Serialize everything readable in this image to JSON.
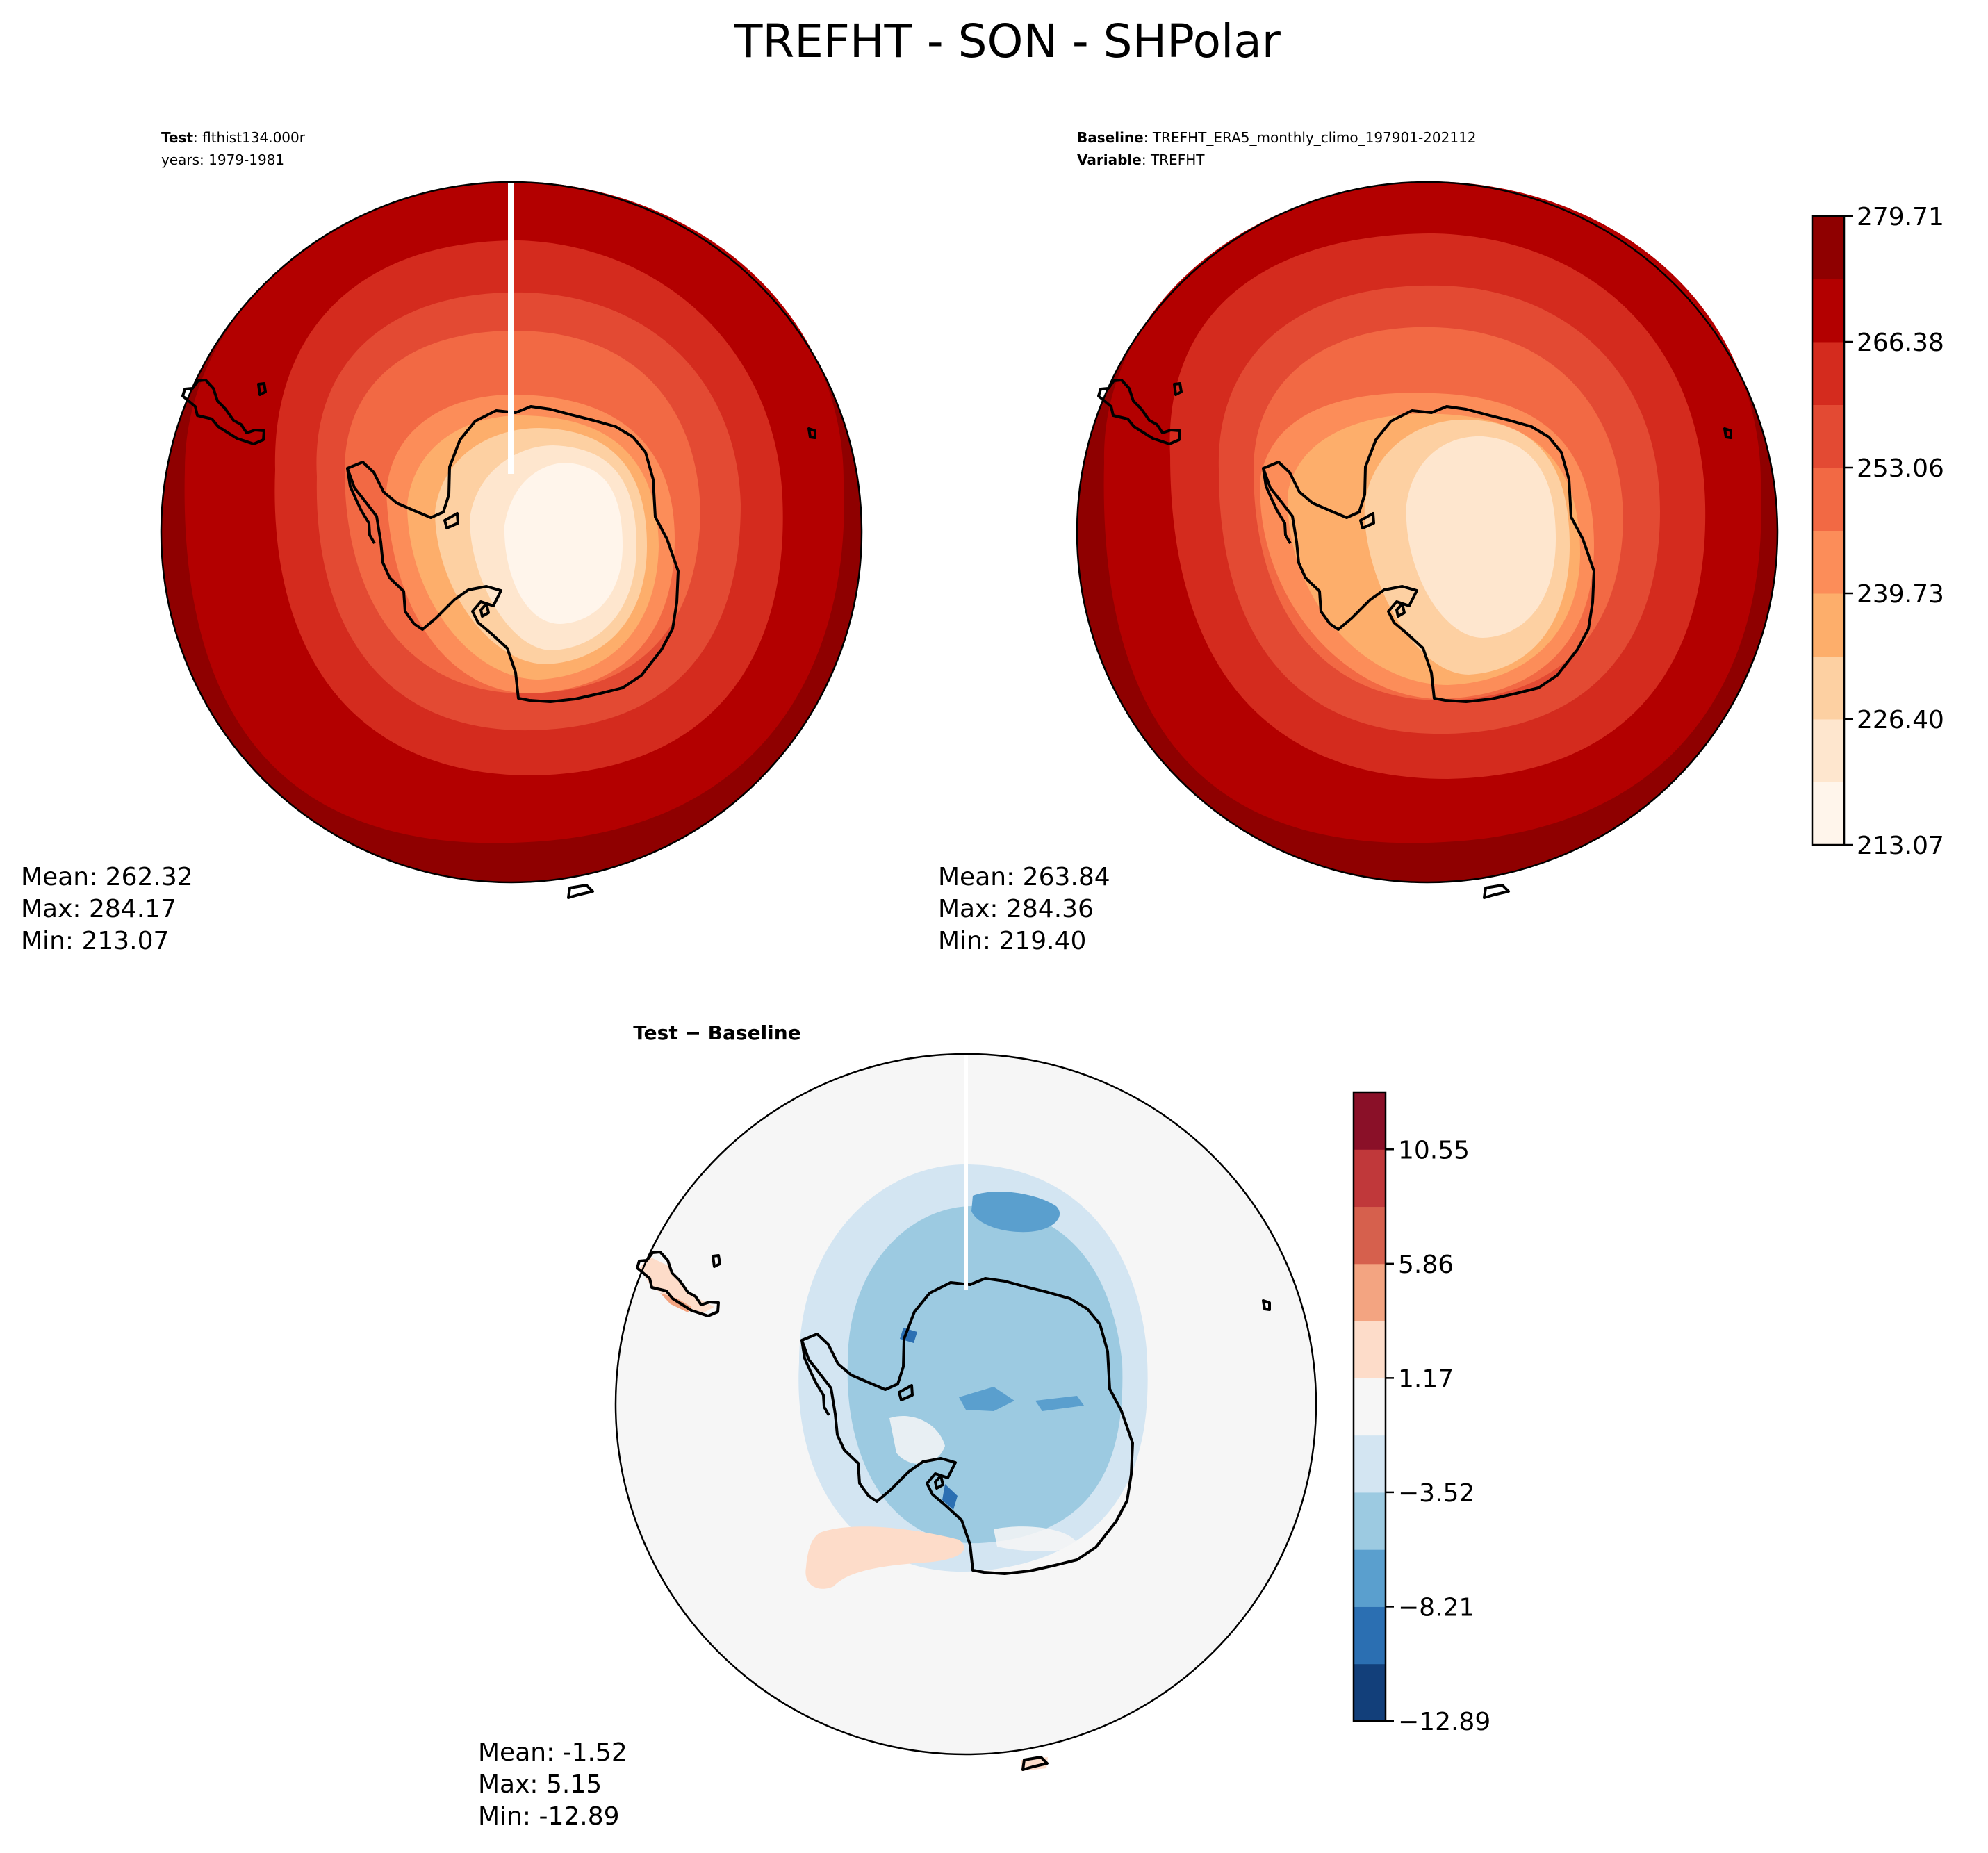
{
  "title": "TREFHT - SON - SHPolar",
  "test_panel": {
    "label_bold": "Test",
    "label_value": ": flthist134.000r",
    "years_line": "years: 1979-1981",
    "stats": {
      "mean": "Mean: 262.32",
      "max": "Max: 284.17",
      "min": "Min: 213.07"
    }
  },
  "baseline_panel": {
    "label_bold": "Baseline",
    "label_value": ": TREFHT_ERA5_monthly_climo_197901-202112",
    "variable_bold": "Variable",
    "variable_value": ": TREFHT",
    "stats": {
      "mean": "Mean: 263.84",
      "max": "Max: 284.36",
      "min": "Min: 219.40"
    }
  },
  "diff_panel": {
    "title": "Test − Baseline",
    "stats": {
      "mean": "Mean: -1.52",
      "max": "Max:  5.15",
      "min": "Min: -12.89"
    }
  },
  "colorbar_main": {
    "ticks": [
      "213.07",
      "226.40",
      "239.73",
      "253.06",
      "266.38",
      "279.71"
    ],
    "colors": [
      "#fff5eb",
      "#fee6ce",
      "#fdd0a2",
      "#fdae6b",
      "#fc8d59",
      "#f26944",
      "#e34a33",
      "#d42b1e",
      "#b30000",
      "#8f0000"
    ]
  },
  "colorbar_diff": {
    "ticks": [
      "−12.89",
      "−8.21",
      "−3.52",
      "1.17",
      "5.86",
      "10.55"
    ],
    "colors": [
      "#123f7a",
      "#2b6fb2",
      "#5a9fce",
      "#9ccae1",
      "#d3e5f2",
      "#f6f6f6",
      "#fddcc9",
      "#f3a481",
      "#d6604d",
      "#c0383a",
      "#8a1028"
    ]
  },
  "map_colors": {
    "land_outline": "#000000",
    "diff_background": "#f6f6f6"
  }
}
